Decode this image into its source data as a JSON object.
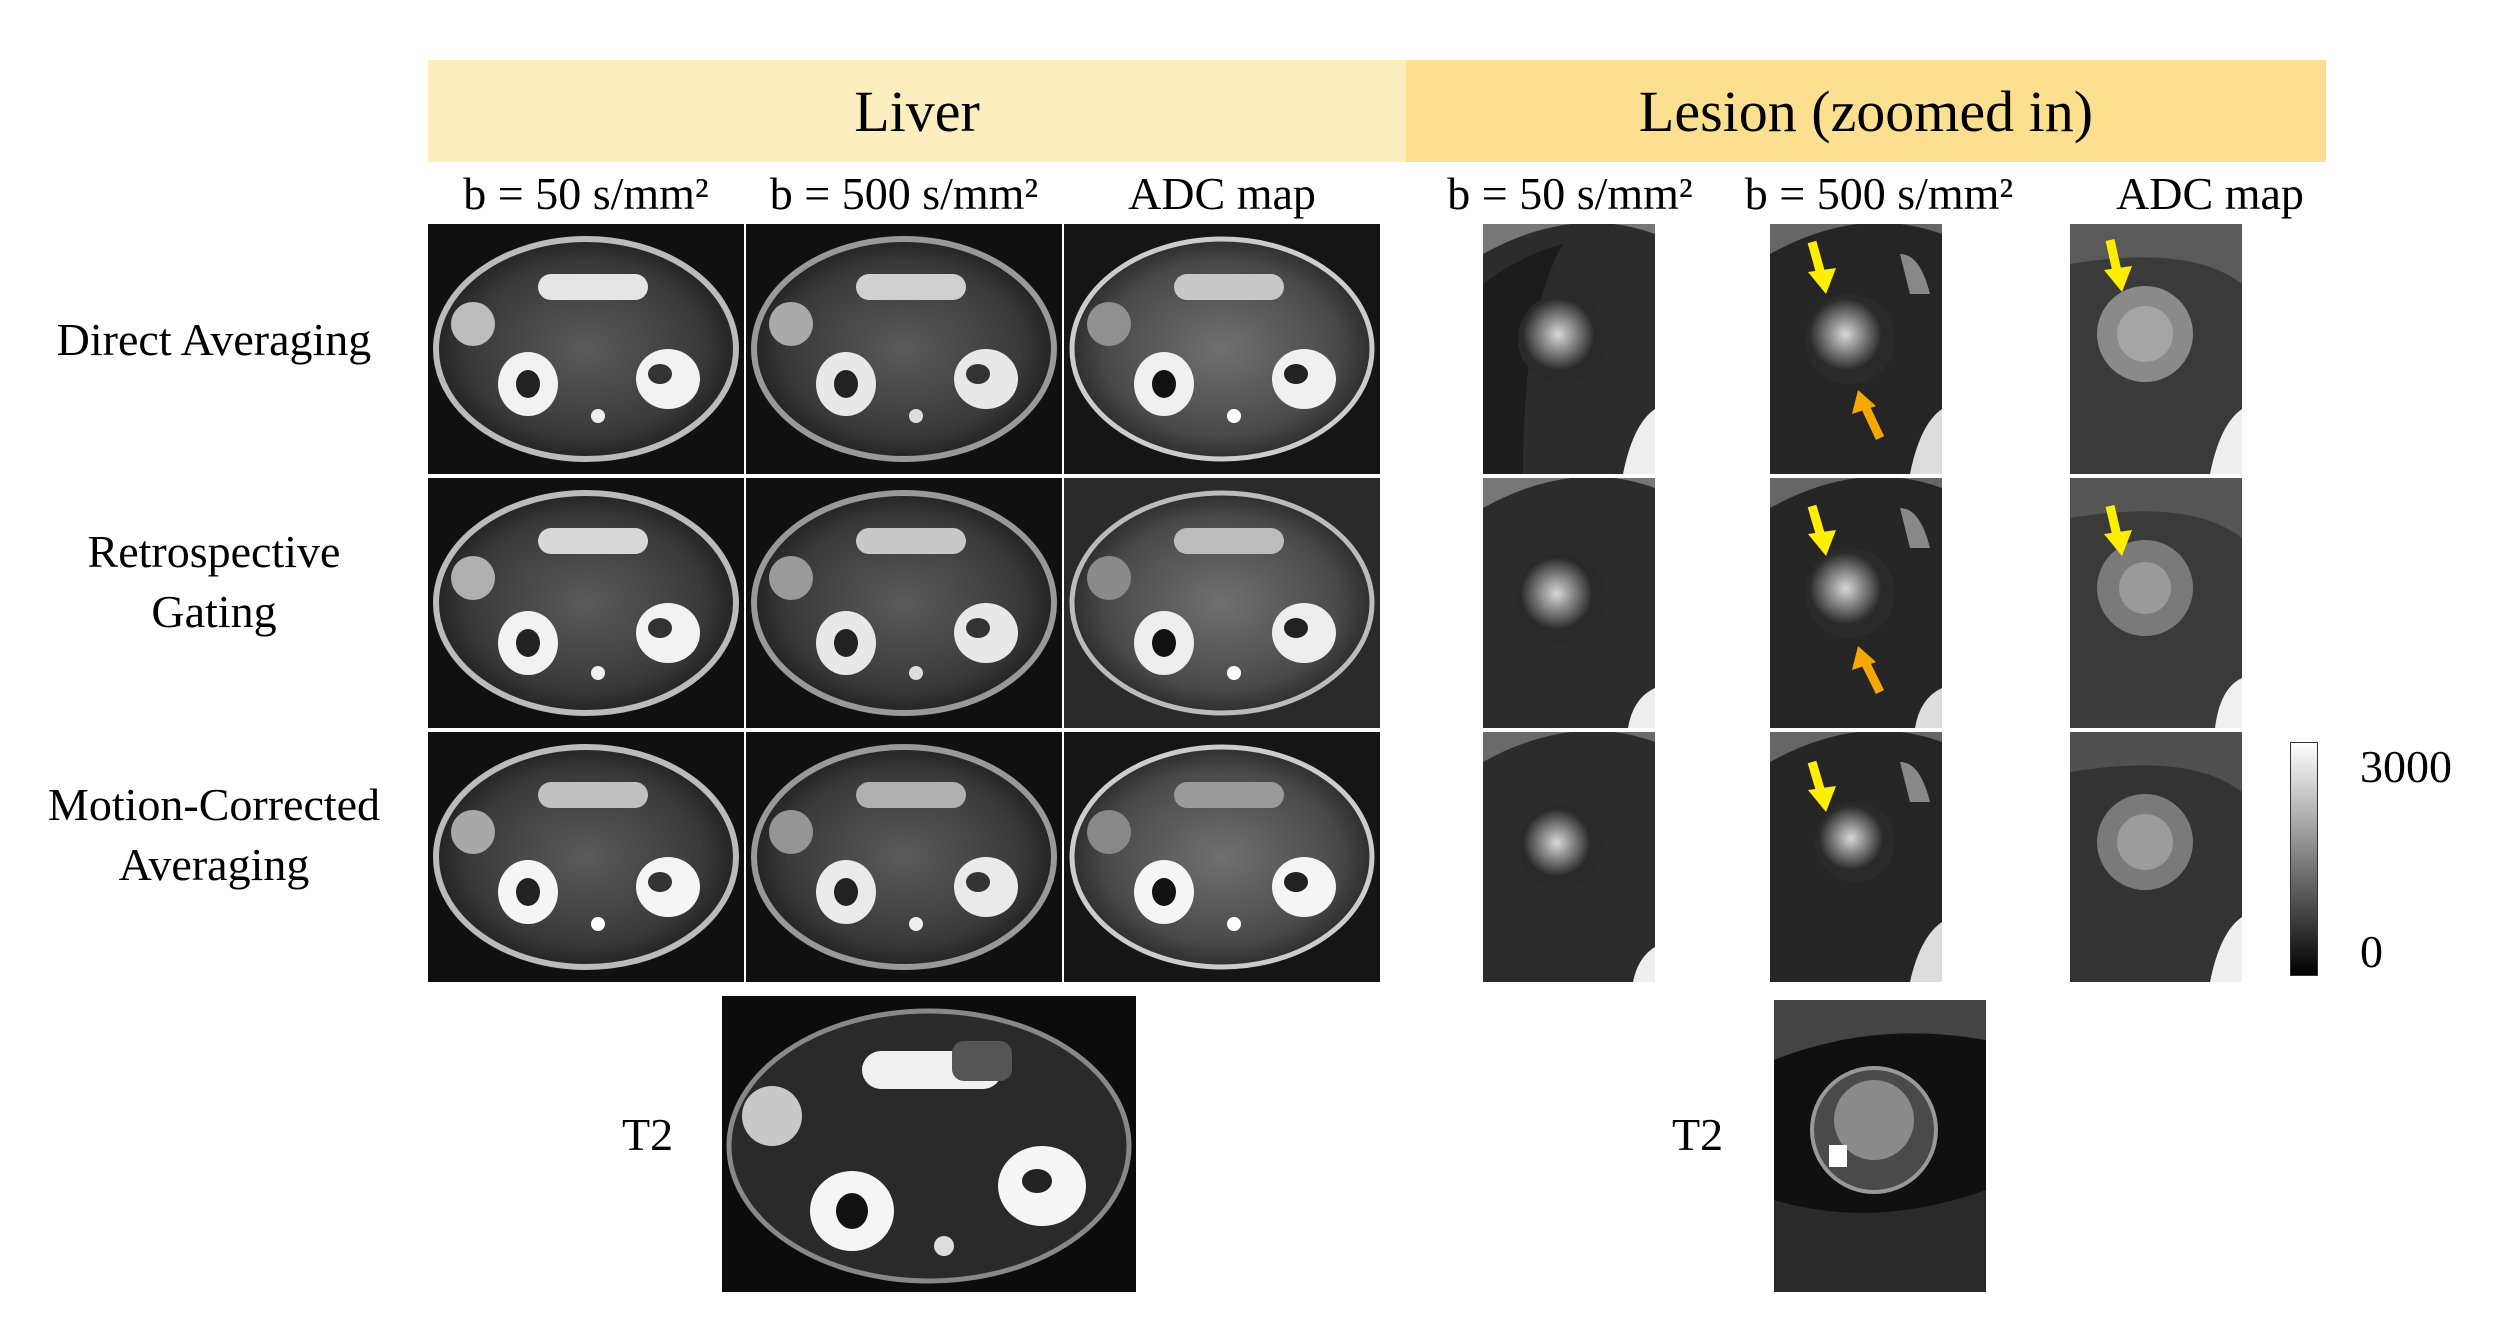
{
  "headers": {
    "liver": "Liver",
    "lesion": "Lesion (zoomed in)"
  },
  "columns": [
    "b = 50 s/mm²",
    "b = 500 s/mm²",
    "ADC map",
    "b = 50 s/mm²",
    "b = 500 s/mm²",
    "ADC map"
  ],
  "rows": {
    "direct": "Direct Averaging",
    "retro_1": "Retrospective",
    "retro_2": "Gating",
    "motion_1": "Motion-Corrected",
    "motion_2": "Averaging"
  },
  "t2_label": "T2",
  "colorbar": {
    "max": "3000",
    "min": "0"
  },
  "colors": {
    "liver_header": "#fdeebf",
    "lesion_header": "#fde08f",
    "arrow_yellow": "#ffee00",
    "arrow_orange": "#f5a800"
  }
}
